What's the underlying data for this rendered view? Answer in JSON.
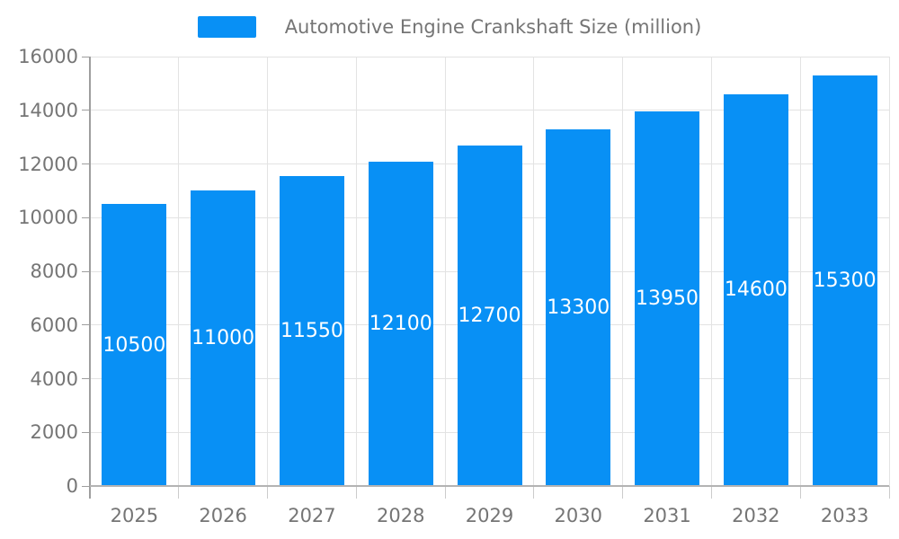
{
  "chart_data": {
    "type": "bar",
    "title": "Automotive Engine Crankshaft Size (million)",
    "legend_entries": [
      "Automotive Engine Crankshaft Size (million)"
    ],
    "legend_position": "top-center",
    "categories": [
      "2025",
      "2026",
      "2027",
      "2028",
      "2029",
      "2030",
      "2031",
      "2032",
      "2033"
    ],
    "values": [
      10500,
      11000,
      11550,
      12100,
      12700,
      13300,
      13950,
      14600,
      15300
    ],
    "value_labels": [
      "10500",
      "11000",
      "11550",
      "12100",
      "12700",
      "13300",
      "13950",
      "14600",
      "15300"
    ],
    "xlabel": "",
    "ylabel": "",
    "ylim": [
      0,
      16000
    ],
    "y_ticks": [
      0,
      2000,
      4000,
      6000,
      8000,
      10000,
      12000,
      14000,
      16000
    ],
    "grid": true,
    "colors": {
      "bar": "#0890f5",
      "grid_line": "#e3e3e3",
      "axis_line": "#9e9e9e",
      "baseline": "#b3b3b3",
      "x_tick": "#cccccc",
      "text": "#757575",
      "bar_label_text": "#ffffff",
      "background": "#ffffff"
    }
  }
}
